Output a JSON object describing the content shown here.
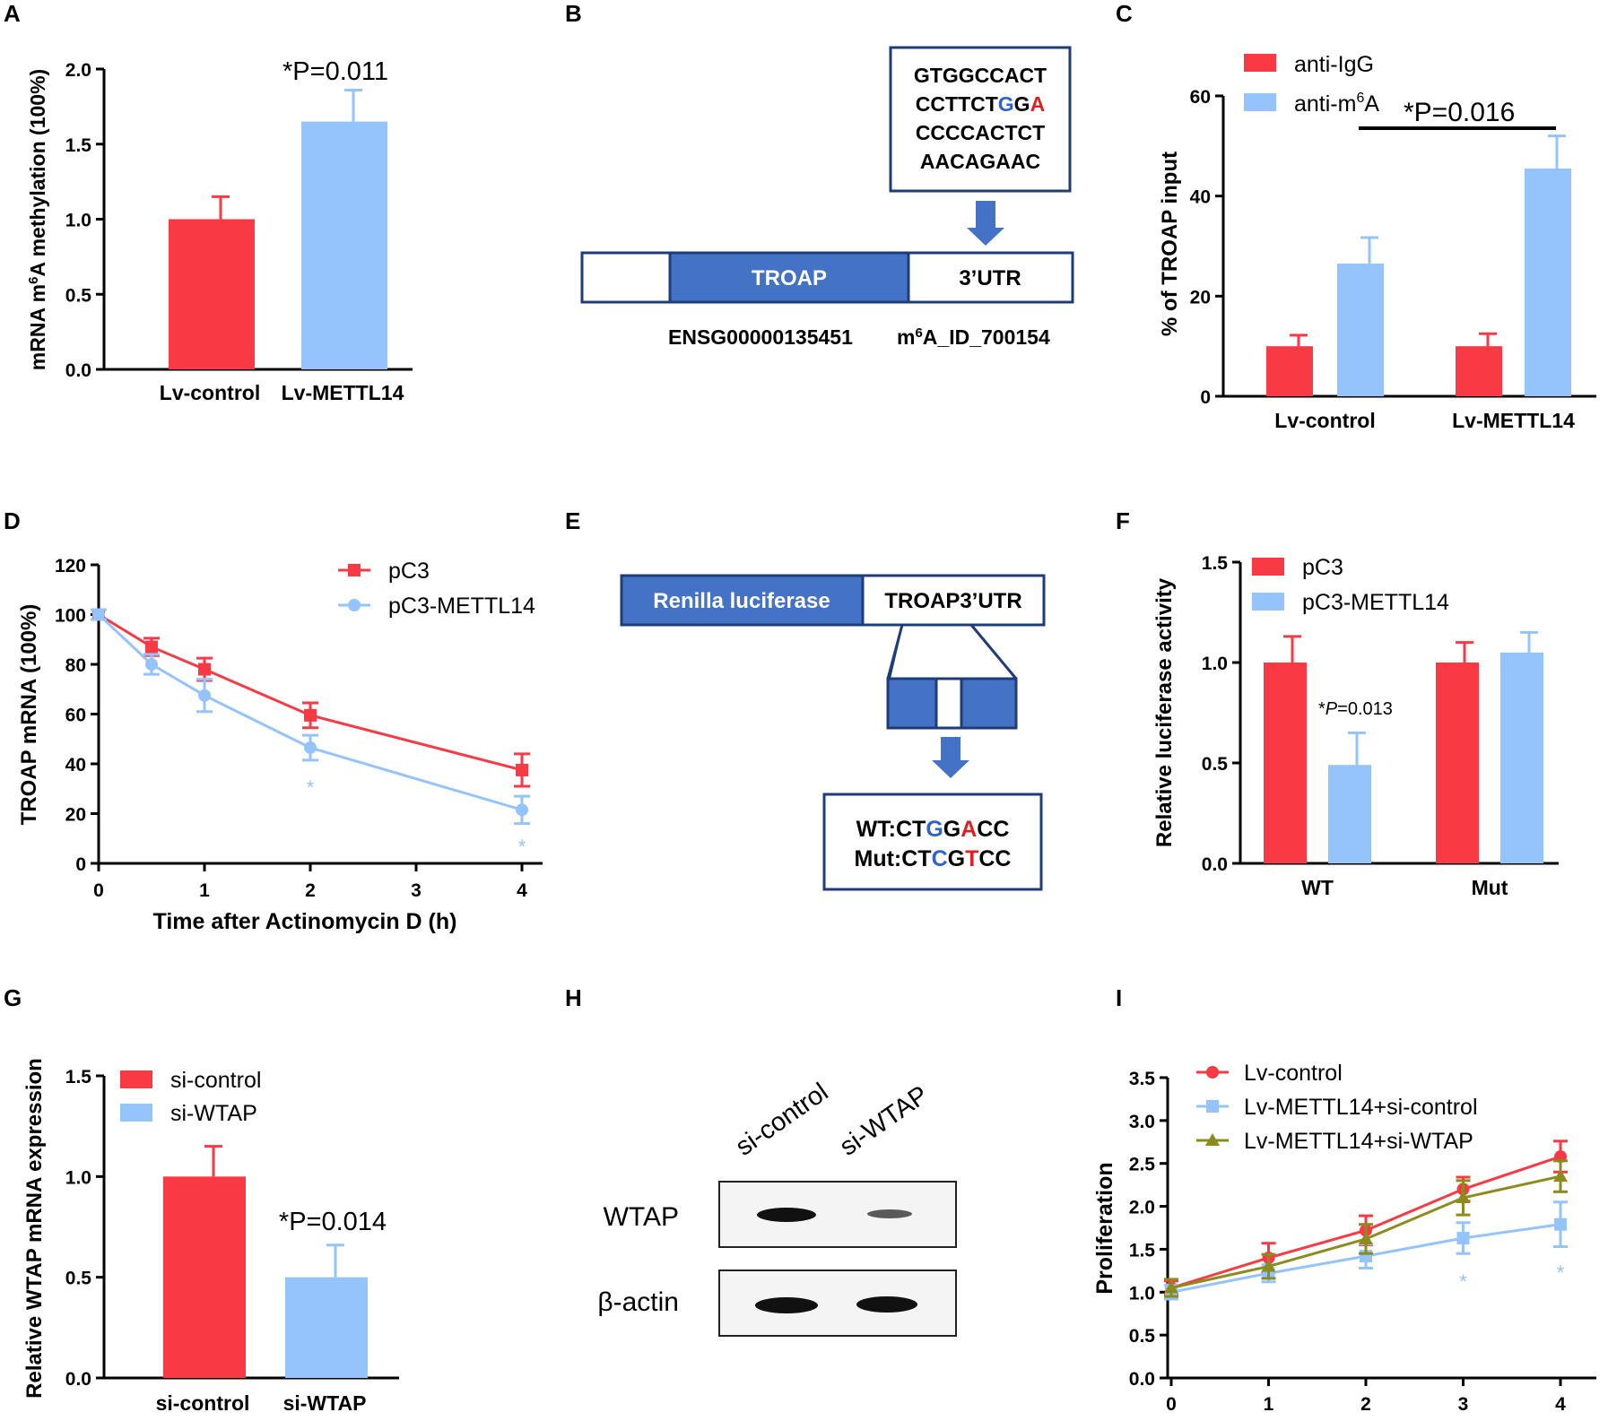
{
  "colors": {
    "red": "#f93a45",
    "blue": "#95c3fb",
    "olive": "#8b8b1e",
    "seqBlue": "#2f63c9",
    "seqRed": "#e02020",
    "boxBlue": "#4472c4",
    "boxBorder": "#1f3c7a"
  },
  "panels": {
    "A": "A",
    "B": "B",
    "C": "C",
    "D": "D",
    "E": "E",
    "F": "F",
    "G": "G",
    "H": "H",
    "I": "I"
  },
  "chart_data": [
    {
      "id": "A",
      "type": "bar",
      "ylabel_pre": "mRNA m",
      "ylabel_sup": "6",
      "ylabel_post": "A methylation (100%)",
      "categories": [
        "Lv-control",
        "Lv-METTL14"
      ],
      "values": [
        1.0,
        1.65
      ],
      "errors": [
        0.15,
        0.21
      ],
      "colors": [
        "red",
        "blue"
      ],
      "ylim": [
        0,
        2.0
      ],
      "yticks": [
        "0.0",
        "0.5",
        "1.0",
        "1.5",
        "2.0"
      ],
      "annotation": "*P=0.011"
    },
    {
      "id": "C",
      "type": "bar",
      "ylabel": "% of TROAP input",
      "categories": [
        "Lv-control",
        "Lv-METTL14"
      ],
      "series": [
        {
          "name": "anti-IgG",
          "values": [
            10,
            10
          ],
          "errors": [
            2.2,
            2.5
          ]
        },
        {
          "name": "anti-m6A",
          "name_pre": "anti-m",
          "name_sup": "6",
          "name_post": "A",
          "values": [
            26.5,
            45.5
          ],
          "errors": [
            5.2,
            6.5
          ]
        }
      ],
      "ylim": [
        0,
        60
      ],
      "yticks": [
        "0",
        "20",
        "40",
        "60"
      ],
      "annotation": "*P=0.016"
    },
    {
      "id": "D",
      "type": "line",
      "xlabel": "Time after Actinomycin D (h)",
      "ylabel": "TROAP mRNA (100%)",
      "x": [
        0,
        0.5,
        1,
        2,
        4
      ],
      "xticks": [
        "0",
        "1",
        "2",
        "3",
        "4"
      ],
      "yticks": [
        "0",
        "20",
        "40",
        "60",
        "80",
        "100",
        "120"
      ],
      "ylim": [
        0,
        120
      ],
      "series": [
        {
          "name": "pC3",
          "values": [
            100,
            87,
            78,
            59.5,
            37.5
          ],
          "errors": [
            2,
            3.5,
            4.5,
            5,
            6.5
          ]
        },
        {
          "name": "pC3-METTL14",
          "values": [
            100,
            80,
            67.5,
            46.5,
            21.5
          ],
          "errors": [
            2,
            4,
            6.5,
            5,
            5.5
          ]
        }
      ],
      "sig_marks": [
        "*",
        "*"
      ]
    },
    {
      "id": "F",
      "type": "bar",
      "ylabel": "Relative luciferase activity",
      "categories": [
        "WT",
        "Mut"
      ],
      "series": [
        {
          "name": "pC3",
          "values": [
            1.0,
            1.0
          ],
          "errors": [
            0.13,
            0.1
          ]
        },
        {
          "name": "pC3-METTL14",
          "values": [
            0.49,
            1.05
          ],
          "errors": [
            0.16,
            0.1
          ]
        }
      ],
      "ylim": [
        0,
        1.5
      ],
      "yticks": [
        "0.0",
        "0.5",
        "1.0",
        "1.5"
      ],
      "annotation_pre": "*",
      "annotation_p": "P",
      "annotation_post": "=0.013"
    },
    {
      "id": "G",
      "type": "bar",
      "ylabel": "Relative WTAP mRNA expression",
      "categories": [
        "si-control",
        "si-WTAP"
      ],
      "legend": [
        "si-control",
        "si-WTAP"
      ],
      "values": [
        1.0,
        0.5
      ],
      "errors": [
        0.15,
        0.16
      ],
      "ylim": [
        0,
        1.5
      ],
      "yticks": [
        "0.0",
        "0.5",
        "1.0",
        "1.5"
      ],
      "annotation": "*P=0.014"
    },
    {
      "id": "I",
      "type": "line",
      "ylabel": "Proliferation",
      "x": [
        0,
        1,
        2,
        3,
        4
      ],
      "xticks": [
        "0",
        "1",
        "2",
        "3",
        "4"
      ],
      "yticks": [
        "0.0",
        "0.5",
        "1.0",
        "1.5",
        "2.0",
        "2.5",
        "3.0",
        "3.5"
      ],
      "ylim": [
        0,
        3.5
      ],
      "series": [
        {
          "name": "Lv-control",
          "values": [
            1.05,
            1.4,
            1.72,
            2.2,
            2.58
          ],
          "errors": [
            0.08,
            0.17,
            0.17,
            0.14,
            0.18
          ]
        },
        {
          "name": "Lv-METTL14+si-control",
          "values": [
            1.0,
            1.22,
            1.42,
            1.63,
            1.79
          ],
          "errors": [
            0.08,
            0.1,
            0.14,
            0.18,
            0.26
          ]
        },
        {
          "name": "Lv-METTL14+si-WTAP",
          "values": [
            1.05,
            1.3,
            1.62,
            2.1,
            2.35
          ],
          "errors": [
            0.1,
            0.14,
            0.17,
            0.2,
            0.18
          ]
        }
      ],
      "sig_marks": [
        "*",
        "*"
      ]
    }
  ],
  "panelB": {
    "seq_line1": "GTGGCCACT",
    "seq_line2_a": "CCTTCT",
    "seq_line2_b": "G",
    "seq_line2_c": "G",
    "seq_line2_d": "A",
    "seq_line3": "CCCCACTCT",
    "seq_line4": "AACAGAAC",
    "gene": "TROAP",
    "utr": "3’UTR",
    "ensg": "ENSG00000135451",
    "site_pre": "m",
    "site_sup": "6",
    "site_post": "A_ID_700154"
  },
  "panelE": {
    "renilla": "Renilla luciferase",
    "utr": "TROAP3’UTR",
    "wt_a": "WT:CT",
    "wt_b": "G",
    "wt_c": "G",
    "wt_d": "A",
    "wt_e": "CC",
    "mut_a": "Mut:CT",
    "mut_b": "C",
    "mut_c": "G",
    "mut_d": "T",
    "mut_e": "CC"
  },
  "panelH": {
    "lane1": "si-control",
    "lane2": "si-WTAP",
    "row1": "WTAP",
    "row2": "β-actin"
  }
}
